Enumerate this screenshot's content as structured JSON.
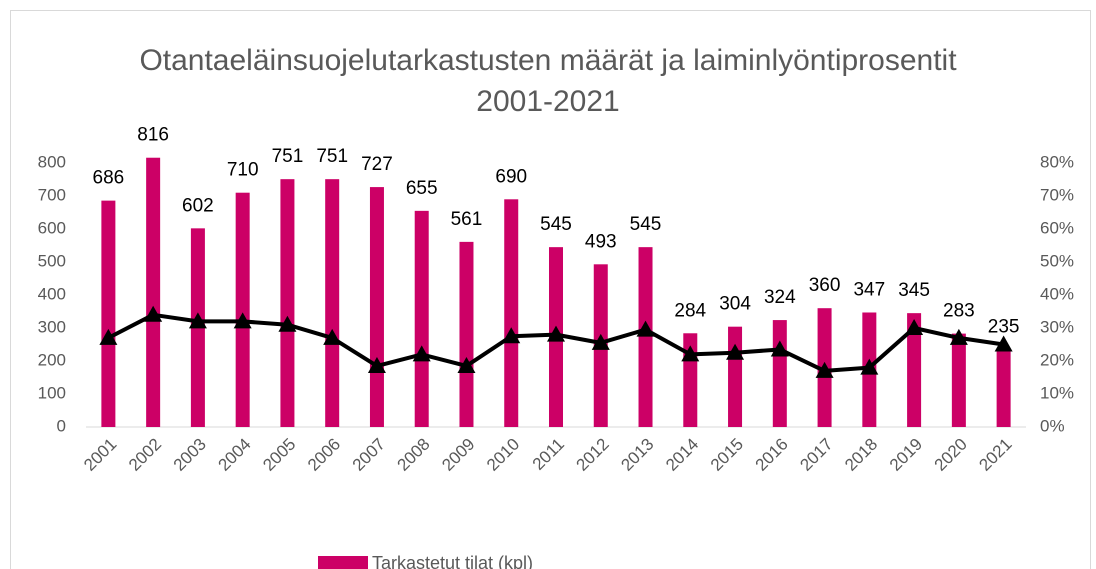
{
  "chart_data": {
    "type": "bar",
    "title": "Otantaeläinsuojelutarkastusten määrät ja laiminlyöntiprosentit 2001-2021",
    "categories": [
      "2001",
      "2002",
      "2003",
      "2004",
      "2005",
      "2006",
      "2007",
      "2008",
      "2009",
      "2010",
      "2011",
      "2012",
      "2013",
      "2014",
      "2015",
      "2016",
      "2017",
      "2018",
      "2019",
      "2020",
      "2021"
    ],
    "series": [
      {
        "name": "Tarkastetut tilat (kpl)",
        "type": "bar",
        "color": "#cc0066",
        "values": [
          686,
          816,
          602,
          710,
          751,
          751,
          727,
          655,
          561,
          690,
          545,
          493,
          545,
          284,
          304,
          324,
          360,
          347,
          345,
          283,
          235
        ]
      },
      {
        "type": "line",
        "axis": "y2",
        "color": "#000000",
        "values": [
          27,
          34,
          32,
          32,
          31,
          27,
          18.5,
          22,
          18.5,
          27.5,
          28,
          25.5,
          29.5,
          22,
          22.5,
          23.5,
          17,
          18,
          30,
          27,
          25
        ]
      }
    ],
    "ylim": [
      0,
      800
    ],
    "yticks": [
      0,
      100,
      200,
      300,
      400,
      500,
      600,
      700,
      800
    ],
    "y2lim": [
      0,
      80
    ],
    "y2ticks": [
      {
        "value": 0,
        "label": "0%"
      },
      {
        "value": 10,
        "label": "10%"
      },
      {
        "value": 20,
        "label": "20%"
      },
      {
        "value": 30,
        "label": "30%"
      },
      {
        "value": 40,
        "label": "40%"
      },
      {
        "value": 50,
        "label": "50%"
      },
      {
        "value": 60,
        "label": "60%"
      },
      {
        "value": 70,
        "label": "70%"
      },
      {
        "value": 80,
        "label": "80%"
      }
    ],
    "grid": false,
    "legend": "bottom"
  }
}
